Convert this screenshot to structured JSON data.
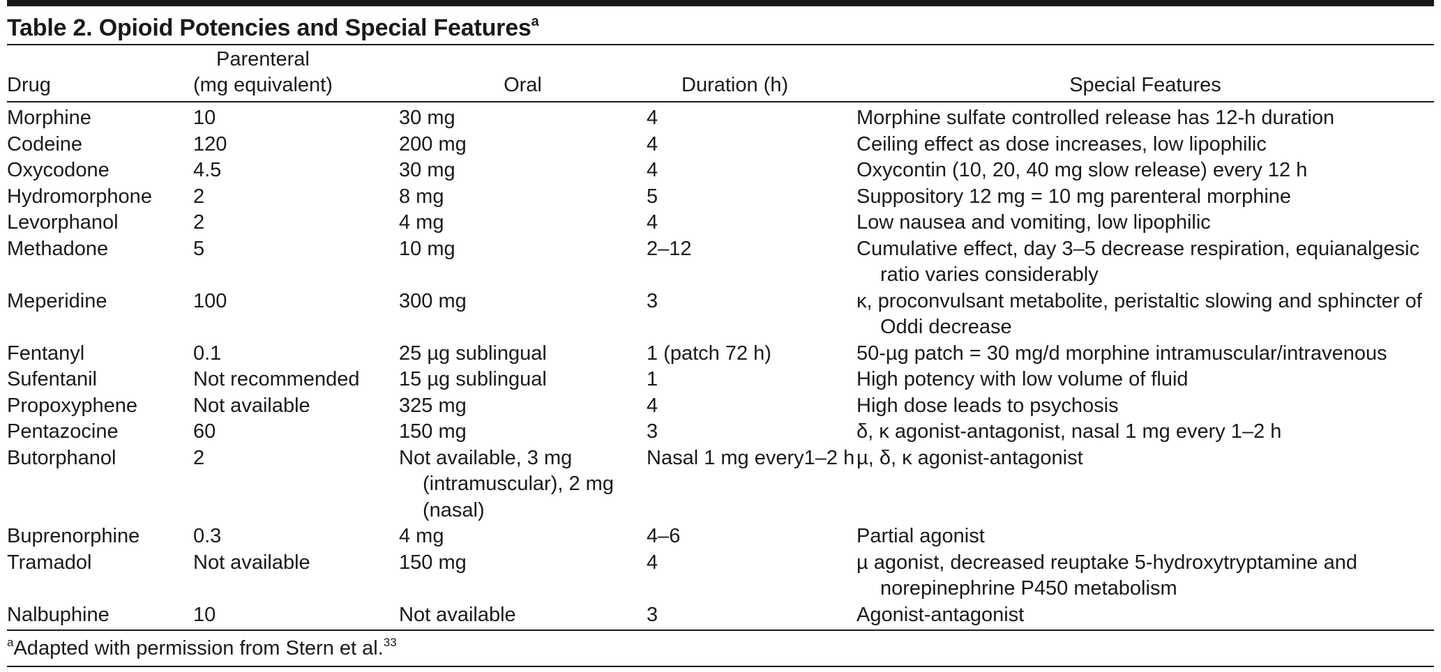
{
  "table": {
    "title": "Table 2. Opioid Potencies and Special Features",
    "title_marker": "a",
    "headers": {
      "drug": "Drug",
      "parenteral_line1": "Parenteral",
      "parenteral_line2": "(mg equivalent)",
      "oral": "Oral",
      "duration": "Duration (h)",
      "features": "Special Features"
    },
    "rows": [
      {
        "drug": "Morphine",
        "parenteral": "10",
        "oral": "30 mg",
        "duration": "4",
        "features": "Morphine sulfate controlled release has 12-h duration"
      },
      {
        "drug": "Codeine",
        "parenteral": "120",
        "oral": "200 mg",
        "duration": "4",
        "features": "Ceiling effect as dose increases, low lipophilic"
      },
      {
        "drug": "Oxycodone",
        "parenteral": "4.5",
        "oral": "30 mg",
        "duration": "4",
        "features": "Oxycontin (10, 20, 40 mg slow release) every 12 h"
      },
      {
        "drug": "Hydromorphone",
        "parenteral": "2",
        "oral": "8 mg",
        "duration": "5",
        "features": "Suppository 12 mg = 10 mg parenteral morphine"
      },
      {
        "drug": "Levorphanol",
        "parenteral": "2",
        "oral": "4 mg",
        "duration": "4",
        "features": "Low nausea and vomiting, low lipophilic"
      },
      {
        "drug": "Methadone",
        "parenteral": "5",
        "oral": "10 mg",
        "duration": "2–12",
        "features": "Cumulative effect, day 3–5 decrease respiration, equianalgesic ratio varies considerably"
      },
      {
        "drug": "Meperidine",
        "parenteral": "100",
        "oral": "300 mg",
        "duration": "3",
        "features": "κ, proconvulsant metabolite, peristaltic slowing and sphincter of Oddi decrease"
      },
      {
        "drug": "Fentanyl",
        "parenteral": "0.1",
        "oral": "25 µg sublingual",
        "duration": "1 (patch 72 h)",
        "features": "50-µg patch = 30 mg/d morphine intramuscular/intravenous"
      },
      {
        "drug": "Sufentanil",
        "parenteral": "Not recommended",
        "oral": "15 µg sublingual",
        "duration": "1",
        "features": "High potency with low volume of fluid"
      },
      {
        "drug": "Propoxyphene",
        "parenteral": "Not available",
        "oral": "325 mg",
        "duration": "4",
        "features": "High dose leads to psychosis"
      },
      {
        "drug": "Pentazocine",
        "parenteral": "60",
        "oral": "150 mg",
        "duration": "3",
        "features": "δ, κ agonist-antagonist, nasal 1 mg every 1–2 h"
      },
      {
        "drug": "Butorphanol",
        "parenteral": "2",
        "oral": "Not available, 3 mg (intramuscular), 2 mg (nasal)",
        "duration": "Nasal 1 mg every1–2 h",
        "features": "µ, δ, κ agonist-antagonist"
      },
      {
        "drug": "Buprenorphine",
        "parenteral": "0.3",
        "oral": "4 mg",
        "duration": "4–6",
        "features": "Partial agonist"
      },
      {
        "drug": "Tramadol",
        "parenteral": "Not available",
        "oral": "150 mg",
        "duration": "4",
        "features": "µ agonist, decreased reuptake 5-hydroxytryptamine and norepinephrine P450 metabolism"
      },
      {
        "drug": "Nalbuphine",
        "parenteral": "10",
        "oral": "Not available",
        "duration": "3",
        "features": "Agonist-antagonist"
      }
    ],
    "footnote": {
      "marker": "a",
      "text": "Adapted with permission from Stern et al.",
      "ref": "33"
    }
  }
}
